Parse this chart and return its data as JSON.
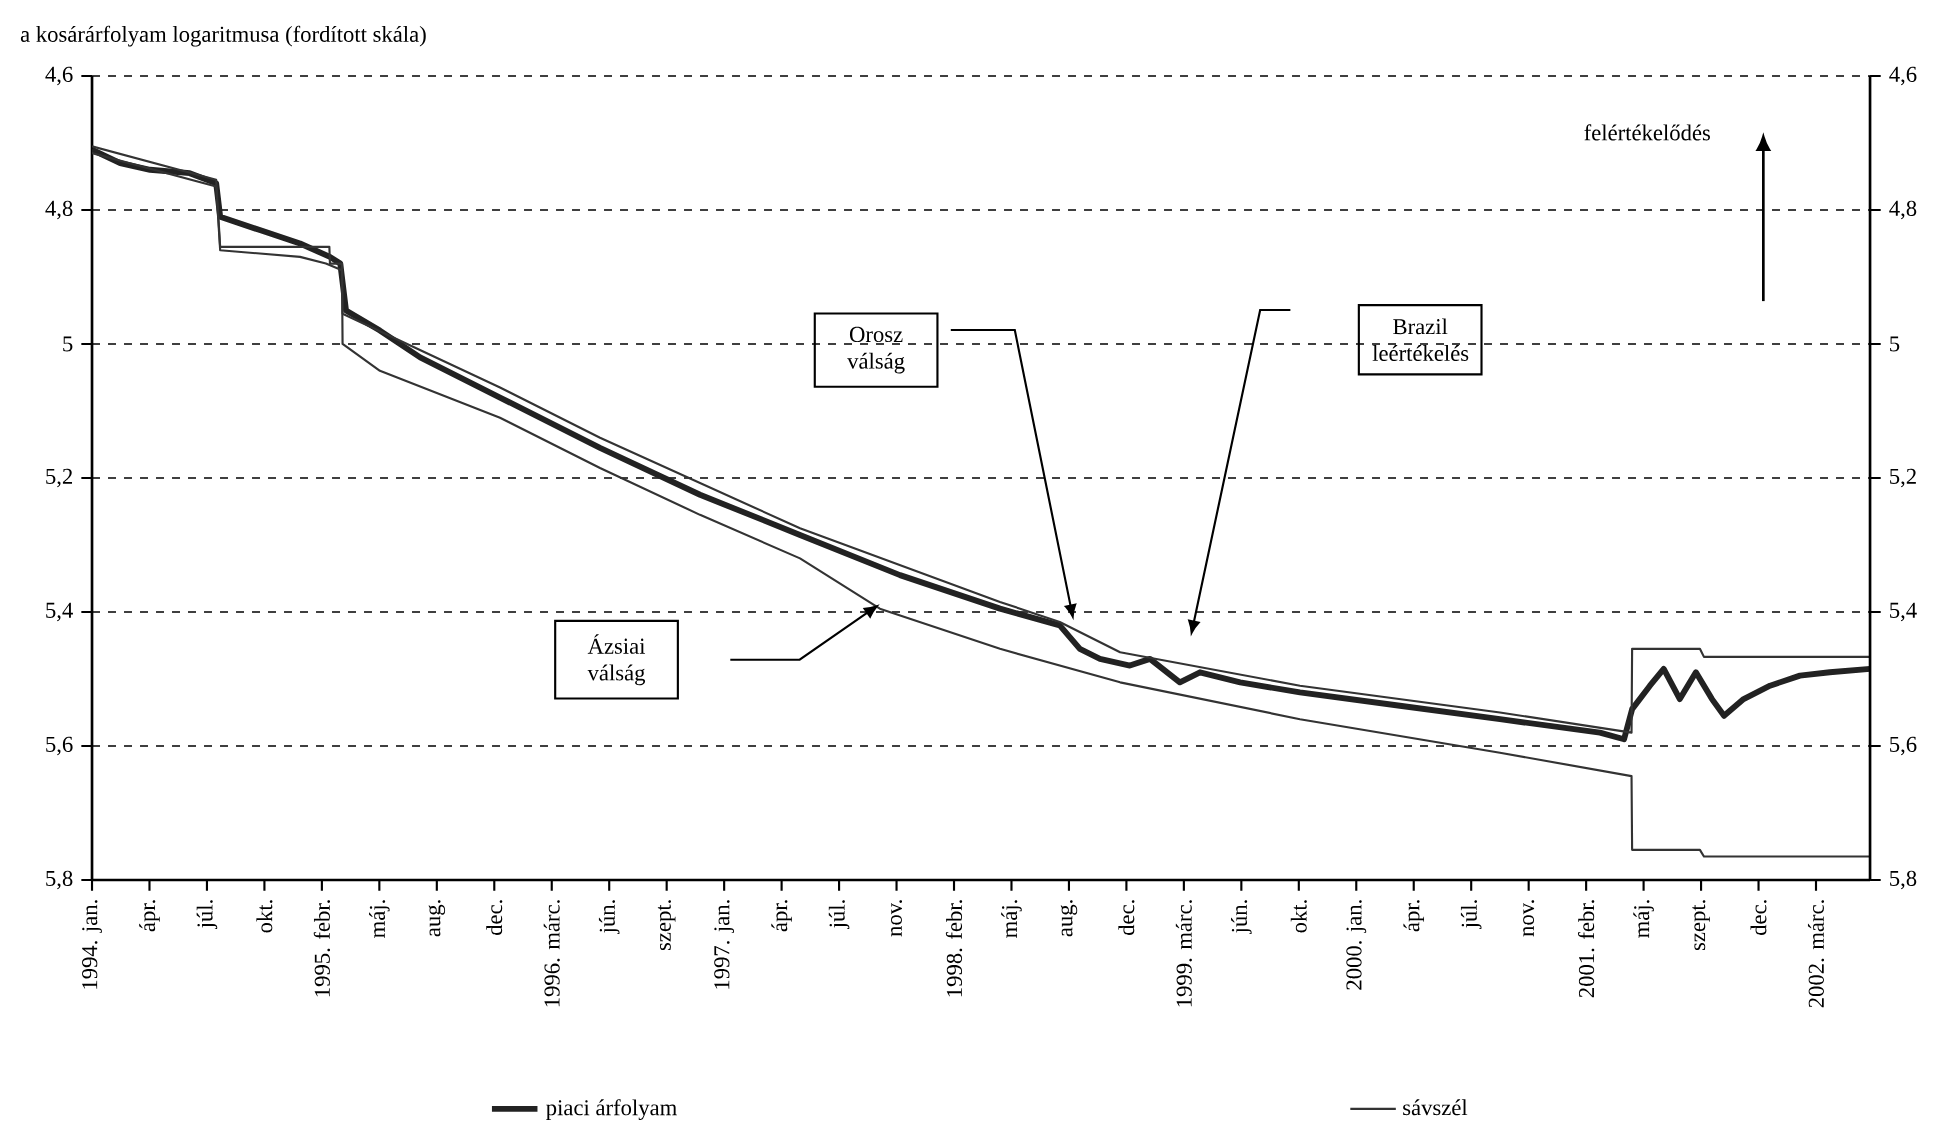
{
  "chart_data": {
    "type": "line",
    "title": "a kosárárfolyam logaritmusa (fordított skála)",
    "xlim": [
      "1994-01-01",
      "2002-06-22"
    ],
    "xticks": [
      {
        "value": "1994-01-01",
        "label": "1994. jan."
      },
      {
        "value": "1994-04-11",
        "label": "ápr."
      },
      {
        "value": "1994-07-20",
        "label": "júl."
      },
      {
        "value": "1994-10-28",
        "label": "okt."
      },
      {
        "value": "1995-02-05",
        "label": "1995. febr."
      },
      {
        "value": "1995-05-16",
        "label": "máj."
      },
      {
        "value": "1995-08-24",
        "label": "aug."
      },
      {
        "value": "1995-12-02",
        "label": "dec."
      },
      {
        "value": "1996-03-11",
        "label": "1996. márc."
      },
      {
        "value": "1996-06-19",
        "label": "jún."
      },
      {
        "value": "1996-09-27",
        "label": "szept."
      },
      {
        "value": "1997-01-05",
        "label": "1997. jan."
      },
      {
        "value": "1997-04-15",
        "label": "ápr."
      },
      {
        "value": "1997-07-24",
        "label": "júl."
      },
      {
        "value": "1997-11-01",
        "label": "nov."
      },
      {
        "value": "1998-02-09",
        "label": "1998. febr."
      },
      {
        "value": "1998-05-20",
        "label": "máj."
      },
      {
        "value": "1998-08-28",
        "label": "aug."
      },
      {
        "value": "1998-12-06",
        "label": "dec."
      },
      {
        "value": "1999-03-16",
        "label": "1999. márc."
      },
      {
        "value": "1999-06-24",
        "label": "jún."
      },
      {
        "value": "1999-10-02",
        "label": "okt."
      },
      {
        "value": "2000-01-10",
        "label": "2000. jan."
      },
      {
        "value": "2000-04-19",
        "label": "ápr."
      },
      {
        "value": "2000-07-28",
        "label": "júl."
      },
      {
        "value": "2000-11-05",
        "label": "nov."
      },
      {
        "value": "2001-02-13",
        "label": "2001. febr."
      },
      {
        "value": "2001-05-24",
        "label": "máj."
      },
      {
        "value": "2001-09-01",
        "label": "szept."
      },
      {
        "value": "2001-12-10",
        "label": "dec."
      },
      {
        "value": "2002-03-20",
        "label": "2002. márc."
      }
    ],
    "ylim": [
      5.8,
      4.6
    ],
    "yticks": [
      {
        "value": 4.6,
        "label": "4,6"
      },
      {
        "value": 4.8,
        "label": "4,8"
      },
      5,
      {
        "value": 5.2,
        "label": "5,2"
      },
      {
        "value": 5.4,
        "label": "5,4"
      },
      {
        "value": 5.6,
        "label": "5,6"
      },
      {
        "value": 5.8,
        "label": "5,8"
      }
    ],
    "y2lim": [
      5.8,
      4.6
    ],
    "y2ticks": [
      {
        "value": 4.6,
        "label": "4,6"
      },
      {
        "value": 4.8,
        "label": "4,8"
      },
      5,
      {
        "value": 5.2,
        "label": "5,2"
      },
      {
        "value": 5.4,
        "label": "5,4"
      },
      {
        "value": 5.6,
        "label": "5,6"
      },
      {
        "value": 5.8,
        "label": "5,8"
      }
    ],
    "grid": "y",
    "legend": "bottom",
    "marker": "none",
    "line_style": "solid",
    "series": [
      {
        "name": "piaci árfolyam",
        "color": "#222222",
        "x": [
          "1994-01-01",
          "1994-02-19",
          "1994-04-12",
          "1994-06-20",
          "1994-08-05",
          "1994-08-12",
          "1994-10-20",
          "1994-12-29",
          "1995-02-19",
          "1995-03-09",
          "1995-03-19",
          "1995-05-17",
          "1995-07-26",
          "1995-12-12",
          "1996-06-03",
          "1996-11-24",
          "1997-05-17",
          "1997-11-07",
          "1998-04-30",
          "1998-08-12",
          "1998-09-16",
          "1998-10-21",
          "1998-12-12",
          "1999-01-16",
          "1999-03-09",
          "1999-04-13",
          "1999-06-22",
          "1999-10-04",
          "2000-03-26",
          "2000-09-16",
          "2001-03-09",
          "2001-04-20",
          "2001-05-04",
          "2001-06-04",
          "2001-06-28",
          "2001-07-26",
          "2001-08-23",
          "2001-09-20",
          "2001-10-11",
          "2001-11-14",
          "2001-12-30",
          "2002-02-20",
          "2002-04-13",
          "2002-06-22"
        ],
        "values": [
          4.71,
          4.73,
          4.74,
          4.745,
          4.76,
          4.81,
          4.83,
          4.85,
          4.87,
          4.88,
          4.95,
          4.98,
          5.02,
          5.08,
          5.155,
          5.225,
          5.285,
          5.345,
          5.395,
          5.42,
          5.455,
          5.47,
          5.48,
          5.47,
          5.505,
          5.49,
          5.505,
          5.52,
          5.54,
          5.56,
          5.58,
          5.59,
          5.545,
          5.51,
          5.485,
          5.53,
          5.49,
          5.53,
          5.555,
          5.53,
          5.51,
          5.495,
          5.49,
          5.485
        ]
      },
      {
        "name": "sávszél",
        "color": "#333333",
        "x": [
          "1994-01-01",
          "1994-08-05",
          "1994-08-12",
          "1994-12-29",
          "1995-02-18",
          "1995-02-19",
          "1995-03-12",
          "1995-03-13",
          "1995-12-12",
          "1996-06-03",
          "1997-05-17",
          "1998-04-30",
          "1998-08-12",
          "1998-11-25",
          "1999-10-04",
          "2000-09-16",
          "2001-05-03",
          "2001-05-04",
          "2001-08-30",
          "2001-09-06",
          "2002-06-22"
        ],
        "values": [
          4.705,
          4.755,
          4.855,
          4.855,
          4.855,
          4.88,
          4.88,
          4.955,
          5.065,
          5.14,
          5.275,
          5.385,
          5.415,
          5.46,
          5.51,
          5.55,
          5.58,
          5.455,
          5.455,
          5.467,
          5.467
        ]
      },
      {
        "color": "#333333",
        "x": [
          "1994-01-01",
          "1994-08-05",
          "1994-08-12",
          "1994-12-29",
          "1995-02-12",
          "1995-03-12",
          "1995-03-13",
          "1995-05-17",
          "1995-12-12",
          "1996-06-03",
          "1996-11-24",
          "1997-05-17",
          "1997-10-03",
          "1998-04-30",
          "1998-11-25",
          "1999-10-04",
          "2000-03-26",
          "2000-09-16",
          "2001-05-03",
          "2001-05-04",
          "2001-08-30",
          "2001-09-06",
          "2002-06-22"
        ],
        "values": [
          4.715,
          4.765,
          4.86,
          4.87,
          4.88,
          4.89,
          5.0,
          5.04,
          5.11,
          5.185,
          5.255,
          5.32,
          5.395,
          5.455,
          5.505,
          5.56,
          5.585,
          5.61,
          5.645,
          5.755,
          5.755,
          5.765,
          5.765
        ]
      }
    ],
    "annotations": [
      "felértékelődés",
      "Orosz válság",
      "Brazil leértékelés",
      "Ázsiai válság"
    ]
  }
}
